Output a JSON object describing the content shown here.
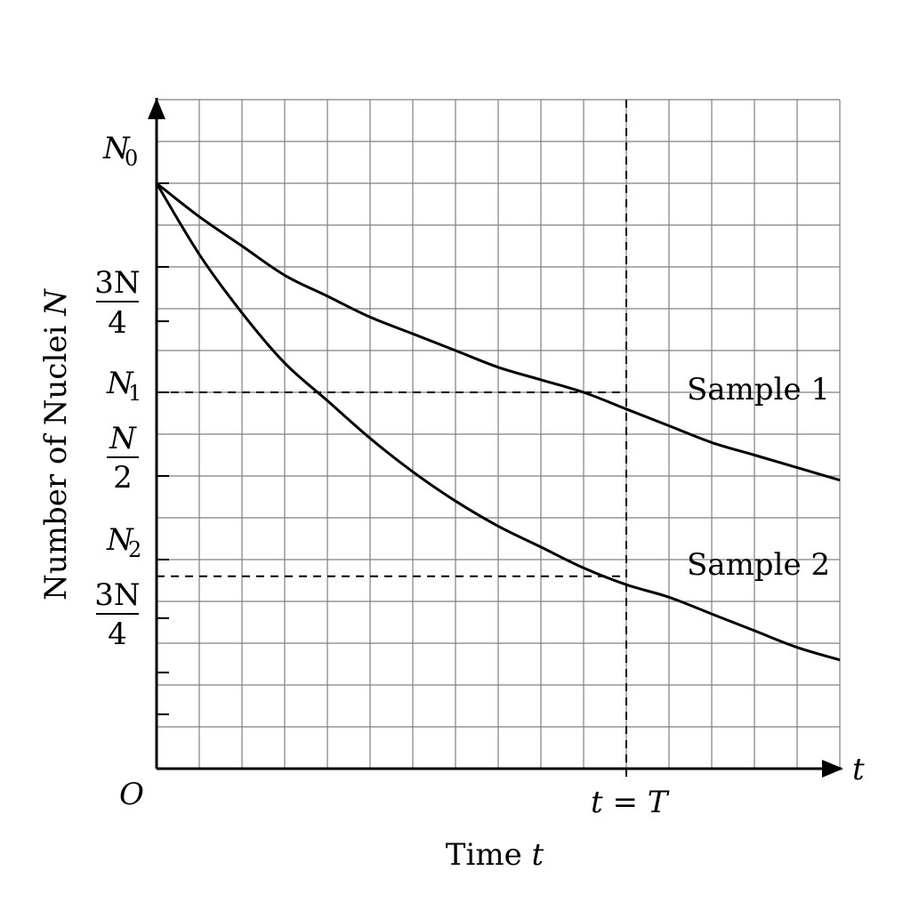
{
  "chart_data": {
    "type": "line",
    "xlabel": "Time",
    "xlabel_var": "t",
    "ylabel": "Number of Nuclei",
    "ylabel_var": "N",
    "x_axis_arrow_label": "t",
    "origin_label": "O",
    "grid": true,
    "xlim": [
      0,
      16
    ],
    "ylim": [
      0,
      16
    ],
    "y_ticks": [
      {
        "value": 1.3
      },
      {
        "value": 2.3
      },
      {
        "value": 3.6
      },
      {
        "value": 5.0
      },
      {
        "value": 7.0
      },
      {
        "value": 9.0
      },
      {
        "value": 10.7
      },
      {
        "value": 12.0
      },
      {
        "value": 14.0
      }
    ],
    "y_tick_labels": {
      "n0": {
        "main": "N",
        "sub": "0",
        "value": 14.0
      },
      "three_quarter_top": {
        "num": "3N",
        "den": "4",
        "value": 12.0
      },
      "n1": {
        "main": "N",
        "sub": "1",
        "value": 9.0
      },
      "half": {
        "num": "N",
        "den": "2",
        "value": 7.0
      },
      "n2": {
        "main": "N",
        "sub": "2",
        "value": 5.0
      },
      "three_quarter_bottom": {
        "num": "3N",
        "den": "4",
        "value": 3.6
      }
    },
    "marker": {
      "label_left": "t",
      "label_eq": " = ",
      "label_right": "T",
      "x": 11.0
    },
    "series": [
      {
        "name": "Sample 1",
        "x": [
          0,
          1,
          2,
          3,
          4,
          5,
          6,
          7,
          8,
          9,
          10,
          11,
          12,
          13,
          14,
          15,
          16
        ],
        "values": [
          14.0,
          13.2,
          12.5,
          11.8,
          11.3,
          10.8,
          10.4,
          10.0,
          9.6,
          9.3,
          9.0,
          8.6,
          8.2,
          7.8,
          7.5,
          7.2,
          6.9
        ]
      },
      {
        "name": "Sample 2",
        "x": [
          0,
          1,
          2,
          3,
          4,
          5,
          6,
          7,
          8,
          9,
          10,
          11,
          12,
          13,
          14,
          15,
          16
        ],
        "values": [
          14.0,
          12.3,
          10.9,
          9.7,
          8.8,
          7.9,
          7.1,
          6.4,
          5.8,
          5.3,
          4.8,
          4.4,
          4.1,
          3.7,
          3.3,
          2.9,
          2.6
        ]
      }
    ],
    "reference_lines": [
      {
        "from_x": 0,
        "to_x": 11.0,
        "y": 9.0
      },
      {
        "from_x": 0,
        "to_x": 11.0,
        "y": 4.6
      }
    ],
    "colors": {
      "line": "#000000",
      "grid": "#808080",
      "background": "#ffffff"
    }
  }
}
